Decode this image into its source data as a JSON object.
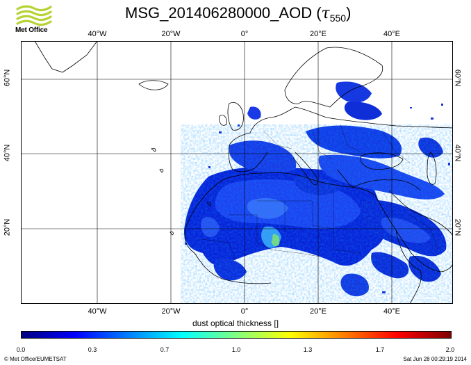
{
  "header": {
    "logo_text": "Met Office",
    "title_main": "MSG_201406280000_AOD (",
    "title_tau": "τ",
    "title_sub": "550",
    "title_close": ")"
  },
  "map": {
    "lon_ticks": [
      {
        "label": "40°W",
        "lon": -40
      },
      {
        "label": "20°W",
        "lon": -20
      },
      {
        "label": "0°",
        "lon": 0
      },
      {
        "label": "20°E",
        "lon": 20
      },
      {
        "label": "40°E",
        "lon": 40
      }
    ],
    "lat_ticks": [
      {
        "label": "60°N",
        "lat": 60
      },
      {
        "label": "40°N",
        "lat": 40
      },
      {
        "label": "20°N",
        "lat": 20
      }
    ],
    "lon_range": [
      -60,
      53
    ],
    "lat_range": [
      0,
      70
    ],
    "grid": true
  },
  "colorbar": {
    "label": "dust optical thickness []",
    "range": [
      0.0,
      2.0
    ],
    "ticks": [
      "0.0",
      "0.3",
      "0.7",
      "1.0",
      "1.3",
      "1.7",
      "2.0"
    ],
    "colors": [
      "#00007f",
      "#0000ff",
      "#0080ff",
      "#00ffff",
      "#80ff80",
      "#ffff00",
      "#ff8000",
      "#ff0000",
      "#7f0000"
    ]
  },
  "footer": {
    "credit": "© Met Office/EUMETSAT",
    "timestamp": "Sat Jun 28 00:29:19 2014"
  }
}
